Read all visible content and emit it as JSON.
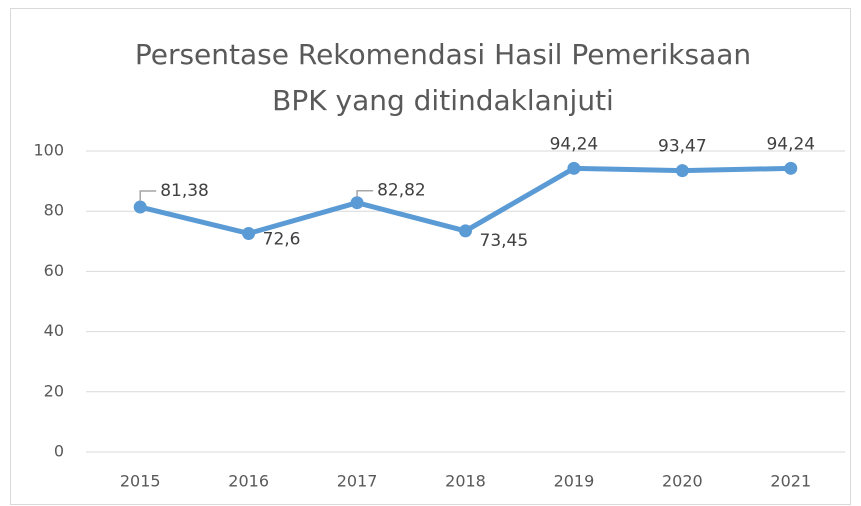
{
  "chart_data": {
    "type": "line",
    "title": [
      "Persentase Rekomendasi Hasil Pemeriksaan",
      "BPK yang ditindaklanjuti"
    ],
    "categories": [
      "2015",
      "2016",
      "2017",
      "2018",
      "2019",
      "2020",
      "2021"
    ],
    "values": [
      81.38,
      72.6,
      82.82,
      73.45,
      94.24,
      93.47,
      94.24
    ],
    "value_labels": [
      "81,38",
      "72,6",
      "82,82",
      "73,45",
      "94,24",
      "93,47",
      "94,24"
    ],
    "color": "#5b9bd5",
    "ylim": [
      0,
      100
    ],
    "yticks": [
      0,
      20,
      40,
      60,
      80,
      100
    ],
    "grid": true
  }
}
